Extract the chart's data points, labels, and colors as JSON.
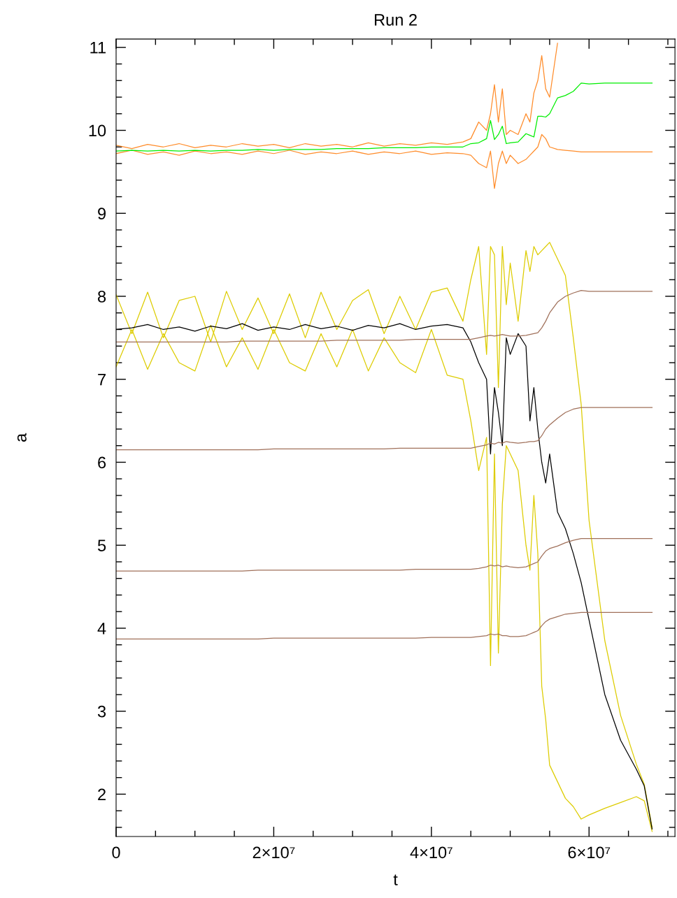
{
  "chart_data": {
    "type": "line",
    "title": "Run 2",
    "xlabel": "t",
    "ylabel": "a",
    "xlim": [
      0,
      70900000.0
    ],
    "ylim": [
      1.49,
      11.1
    ],
    "xticks": [
      {
        "value": 0,
        "label": "0"
      },
      {
        "value": 20000000.0,
        "label": "2×10⁷"
      },
      {
        "value": 40000000.0,
        "label": "4×10⁷"
      },
      {
        "value": 60000000.0,
        "label": "6×10⁷"
      }
    ],
    "yticks": [
      2,
      3,
      4,
      5,
      6,
      7,
      8,
      9,
      10,
      11
    ],
    "grid": false,
    "legend": false,
    "x": [
      0,
      2000000.0,
      4000000.0,
      6000000.0,
      8000000.0,
      10000000.0,
      12000000.0,
      14000000.0,
      16000000.0,
      18000000.0,
      20000000.0,
      22000000.0,
      24000000.0,
      26000000.0,
      28000000.0,
      30000000.0,
      32000000.0,
      34000000.0,
      36000000.0,
      38000000.0,
      40000000.0,
      42000000.0,
      44000000.0,
      45000000.0,
      46000000.0,
      47000000.0,
      47500000.0,
      48000000.0,
      48500000.0,
      49000000.0,
      49500000.0,
      50000000.0,
      51000000.0,
      52000000.0,
      52500000.0,
      53000000.0,
      53500000.0,
      54000000.0,
      54500000.0,
      55000000.0,
      56000000.0,
      57000000.0,
      58000000.0,
      59000000.0,
      60000000.0,
      62000000.0,
      64000000.0,
      66000000.0,
      67000000.0,
      68000000.0
    ],
    "series": [
      {
        "color": "#ff8c2a",
        "values": [
          9.82,
          9.78,
          9.83,
          9.8,
          9.84,
          9.79,
          9.82,
          9.8,
          9.84,
          9.81,
          9.83,
          9.79,
          9.84,
          9.81,
          9.83,
          9.8,
          9.85,
          9.81,
          9.84,
          9.82,
          9.85,
          9.83,
          9.86,
          9.9,
          10.1,
          10.0,
          10.2,
          10.55,
          10.1,
          10.5,
          9.95,
          10.0,
          9.95,
          10.2,
          10.1,
          10.45,
          10.6,
          10.9,
          10.5,
          10.4,
          11.05,
          null,
          null,
          null,
          null,
          null,
          null,
          null,
          null,
          null
        ]
      },
      {
        "color": "#ff8c2a",
        "values": [
          9.72,
          9.76,
          9.71,
          9.74,
          9.7,
          9.75,
          9.72,
          9.74,
          9.71,
          9.75,
          9.72,
          9.76,
          9.71,
          9.74,
          9.72,
          9.75,
          9.71,
          9.74,
          9.72,
          9.75,
          9.71,
          9.73,
          9.72,
          9.7,
          9.6,
          9.55,
          9.75,
          9.3,
          9.6,
          9.75,
          9.6,
          9.7,
          9.6,
          9.65,
          9.7,
          9.75,
          9.8,
          9.95,
          9.9,
          9.8,
          9.77,
          9.76,
          9.75,
          9.74,
          9.74,
          9.74,
          9.74,
          9.74,
          9.74,
          9.74
        ]
      },
      {
        "color": "#00ee00",
        "values": [
          9.75,
          9.76,
          9.75,
          9.76,
          9.75,
          9.76,
          9.75,
          9.76,
          9.76,
          9.77,
          9.76,
          9.77,
          9.77,
          9.77,
          9.78,
          9.78,
          9.78,
          9.79,
          9.79,
          9.79,
          9.8,
          9.8,
          9.8,
          9.84,
          9.85,
          9.9,
          10.12,
          9.89,
          9.95,
          10.05,
          9.84,
          9.85,
          9.86,
          9.96,
          9.94,
          9.92,
          10.17,
          10.17,
          10.16,
          10.2,
          10.39,
          10.42,
          10.47,
          10.57,
          10.56,
          10.57,
          10.57,
          10.57,
          10.57,
          10.57
        ]
      },
      {
        "color": "#ddcc00",
        "values": [
          8.02,
          7.55,
          8.05,
          7.5,
          7.95,
          8.0,
          7.45,
          8.06,
          7.6,
          7.98,
          7.55,
          8.03,
          7.5,
          8.05,
          7.6,
          7.95,
          8.08,
          7.55,
          8.0,
          7.6,
          8.05,
          8.1,
          7.7,
          8.2,
          8.6,
          7.3,
          8.6,
          8.5,
          6.9,
          8.6,
          7.9,
          8.4,
          7.7,
          8.55,
          8.3,
          8.6,
          8.5,
          8.55,
          8.6,
          8.65,
          8.45,
          8.25,
          7.5,
          6.7,
          5.3,
          3.85,
          2.95,
          2.36,
          2.12,
          1.6
        ]
      },
      {
        "color": "#ddcc00",
        "values": [
          7.15,
          7.6,
          7.12,
          7.55,
          7.2,
          7.1,
          7.65,
          7.15,
          7.5,
          7.12,
          7.6,
          7.2,
          7.1,
          7.55,
          7.15,
          7.6,
          7.1,
          7.5,
          7.2,
          7.08,
          7.6,
          7.05,
          7.0,
          6.5,
          5.9,
          6.3,
          3.55,
          6.1,
          3.7,
          5.5,
          6.2,
          6.1,
          5.9,
          5.0,
          4.7,
          5.6,
          4.9,
          3.3,
          2.9,
          2.35,
          2.15,
          1.95,
          1.85,
          1.7,
          1.75,
          1.83,
          1.9,
          1.97,
          1.92,
          1.55
        ]
      },
      {
        "color": "#000000",
        "values": [
          7.6,
          7.62,
          7.66,
          7.6,
          7.63,
          7.58,
          7.64,
          7.61,
          7.67,
          7.59,
          7.63,
          7.6,
          7.66,
          7.61,
          7.64,
          7.59,
          7.65,
          7.62,
          7.67,
          7.6,
          7.64,
          7.66,
          7.62,
          7.45,
          7.2,
          7.0,
          6.1,
          6.9,
          6.6,
          6.2,
          7.5,
          7.3,
          7.55,
          7.4,
          6.5,
          6.9,
          6.4,
          6.0,
          5.75,
          6.1,
          5.4,
          5.2,
          4.9,
          4.55,
          4.1,
          3.2,
          2.65,
          2.3,
          2.1,
          1.58
        ]
      },
      {
        "color": "#a0705a",
        "values": [
          7.45,
          7.45,
          7.45,
          7.45,
          7.45,
          7.45,
          7.45,
          7.45,
          7.46,
          7.46,
          7.46,
          7.46,
          7.46,
          7.46,
          7.47,
          7.47,
          7.47,
          7.47,
          7.47,
          7.48,
          7.48,
          7.48,
          7.48,
          7.48,
          7.5,
          7.52,
          7.53,
          7.52,
          7.53,
          7.54,
          7.53,
          7.52,
          7.52,
          7.53,
          7.54,
          7.55,
          7.56,
          7.62,
          7.7,
          7.8,
          7.93,
          8.0,
          8.04,
          8.07,
          8.06,
          8.06,
          8.06,
          8.06,
          8.06,
          8.06
        ]
      },
      {
        "color": "#a0705a",
        "values": [
          6.15,
          6.15,
          6.15,
          6.15,
          6.15,
          6.15,
          6.15,
          6.15,
          6.15,
          6.15,
          6.16,
          6.16,
          6.16,
          6.16,
          6.16,
          6.16,
          6.16,
          6.16,
          6.17,
          6.17,
          6.17,
          6.17,
          6.17,
          6.17,
          6.19,
          6.21,
          6.23,
          6.22,
          6.24,
          6.23,
          6.25,
          6.24,
          6.23,
          6.24,
          6.25,
          6.25,
          6.26,
          6.32,
          6.4,
          6.45,
          6.53,
          6.6,
          6.64,
          6.66,
          6.66,
          6.66,
          6.66,
          6.66,
          6.66,
          6.66
        ]
      },
      {
        "color": "#a0705a",
        "values": [
          4.69,
          4.69,
          4.69,
          4.69,
          4.69,
          4.69,
          4.69,
          4.69,
          4.69,
          4.7,
          4.7,
          4.7,
          4.7,
          4.7,
          4.7,
          4.7,
          4.7,
          4.7,
          4.7,
          4.71,
          4.71,
          4.71,
          4.71,
          4.71,
          4.72,
          4.74,
          4.76,
          4.75,
          4.76,
          4.74,
          4.75,
          4.74,
          4.73,
          4.74,
          4.76,
          4.78,
          4.8,
          4.87,
          4.93,
          4.96,
          4.99,
          5.03,
          5.06,
          5.08,
          5.08,
          5.08,
          5.08,
          5.08,
          5.08,
          5.08
        ]
      },
      {
        "color": "#a0705a",
        "values": [
          3.87,
          3.87,
          3.87,
          3.87,
          3.87,
          3.87,
          3.87,
          3.87,
          3.87,
          3.87,
          3.88,
          3.88,
          3.88,
          3.88,
          3.88,
          3.88,
          3.88,
          3.88,
          3.88,
          3.88,
          3.89,
          3.89,
          3.89,
          3.89,
          3.9,
          3.91,
          3.93,
          3.92,
          3.93,
          3.91,
          3.91,
          3.9,
          3.9,
          3.91,
          3.93,
          3.95,
          3.97,
          4.03,
          4.08,
          4.11,
          4.14,
          4.17,
          4.18,
          4.19,
          4.19,
          4.19,
          4.19,
          4.19,
          4.19,
          4.19
        ]
      }
    ]
  }
}
